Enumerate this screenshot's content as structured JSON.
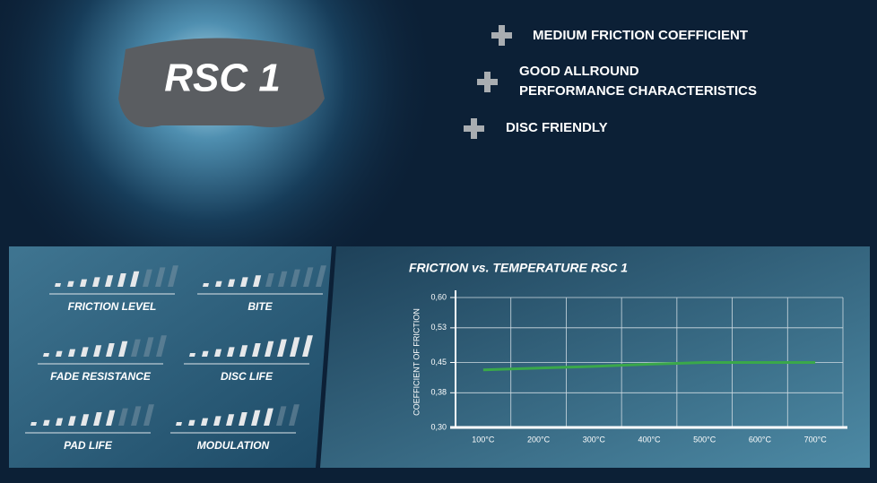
{
  "product": {
    "name": "RSC 1"
  },
  "features": [
    "MEDIUM FRICTION COEFFICIENT",
    [
      "GOOD ALLROUND",
      "PERFORMANCE CHARACTERISTICS"
    ],
    "DISC FRIENDLY"
  ],
  "rating_scale": 10,
  "ratings": [
    {
      "label": "FRICTION LEVEL",
      "value": 7
    },
    {
      "label": "BITE",
      "value": 5
    },
    {
      "label": "FADE RESISTANCE",
      "value": 7
    },
    {
      "label": "DISC LIFE",
      "value": 10
    },
    {
      "label": "PAD LIFE",
      "value": 7
    },
    {
      "label": "MODULATION",
      "value": 8
    }
  ],
  "chart_data": {
    "type": "line",
    "title": "FRICTION vs. TEMPERATURE RSC 1",
    "y_label": "COEFFICIENT OF FRICTION",
    "categories": [
      "100°C",
      "200°C",
      "300°C",
      "400°C",
      "500°C",
      "600°C",
      "700°C"
    ],
    "series": [
      {
        "name": "RSC 1",
        "color": "#3aa84a",
        "values": [
          0.433,
          0.437,
          0.441,
          0.446,
          0.45,
          0.45,
          0.45
        ]
      }
    ],
    "ylim": [
      0.3,
      0.6
    ],
    "yticks": [
      {
        "value": 0.3,
        "label": "0,30"
      },
      {
        "value": 0.38,
        "label": "0,38"
      },
      {
        "value": 0.45,
        "label": "0,45"
      },
      {
        "value": 0.53,
        "label": "0,53"
      },
      {
        "value": 0.6,
        "label": "0,60"
      }
    ],
    "grid": true
  }
}
